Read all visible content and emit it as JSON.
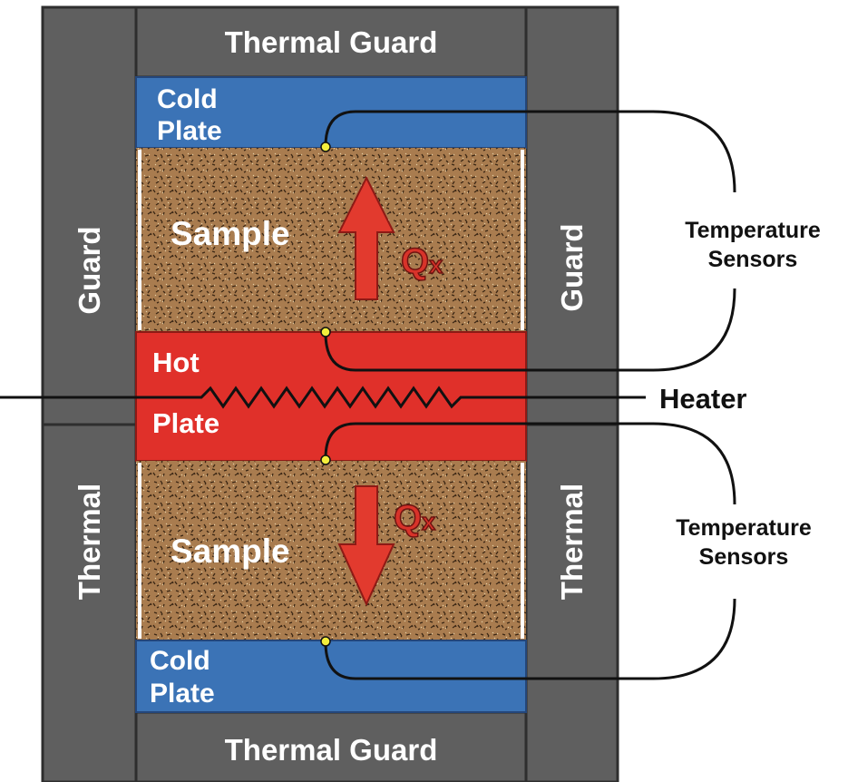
{
  "labels": {
    "thermal_guard_top": "Thermal Guard",
    "thermal_guard_bottom": "Thermal Guard",
    "cold_plate_top_line1": "Cold",
    "cold_plate_top_line2": "Plate",
    "cold_plate_bottom_line1": "Cold",
    "cold_plate_bottom_line2": "Plate",
    "hot_plate_line1": "Hot",
    "hot_plate_line2": "Plate",
    "sample_top": "Sample",
    "sample_bottom": "Sample",
    "guard_left": "Guard",
    "guard_right": "Guard",
    "thermal_left": "Thermal",
    "thermal_right": "Thermal",
    "heat_flux_top_q": "Q",
    "heat_flux_top_x": "x",
    "heat_flux_bottom_q": "Q",
    "heat_flux_bottom_x": "x",
    "temperature_sensors_top_line1": "Temperature",
    "temperature_sensors_top_line2": "Sensors",
    "temperature_sensors_bottom_line1": "Temperature",
    "temperature_sensors_bottom_line2": "Sensors",
    "heater": "Heater"
  },
  "colors": {
    "guard": "#5f5f5f",
    "guard_dark": "#3a3a3a",
    "cold_plate": "#3b73b6",
    "hot_plate": "#e0302a",
    "sample": "#a97c4f",
    "arrow": "#e23a2e",
    "sensor_dot": "#f4ee3c",
    "wire": "#111111"
  }
}
